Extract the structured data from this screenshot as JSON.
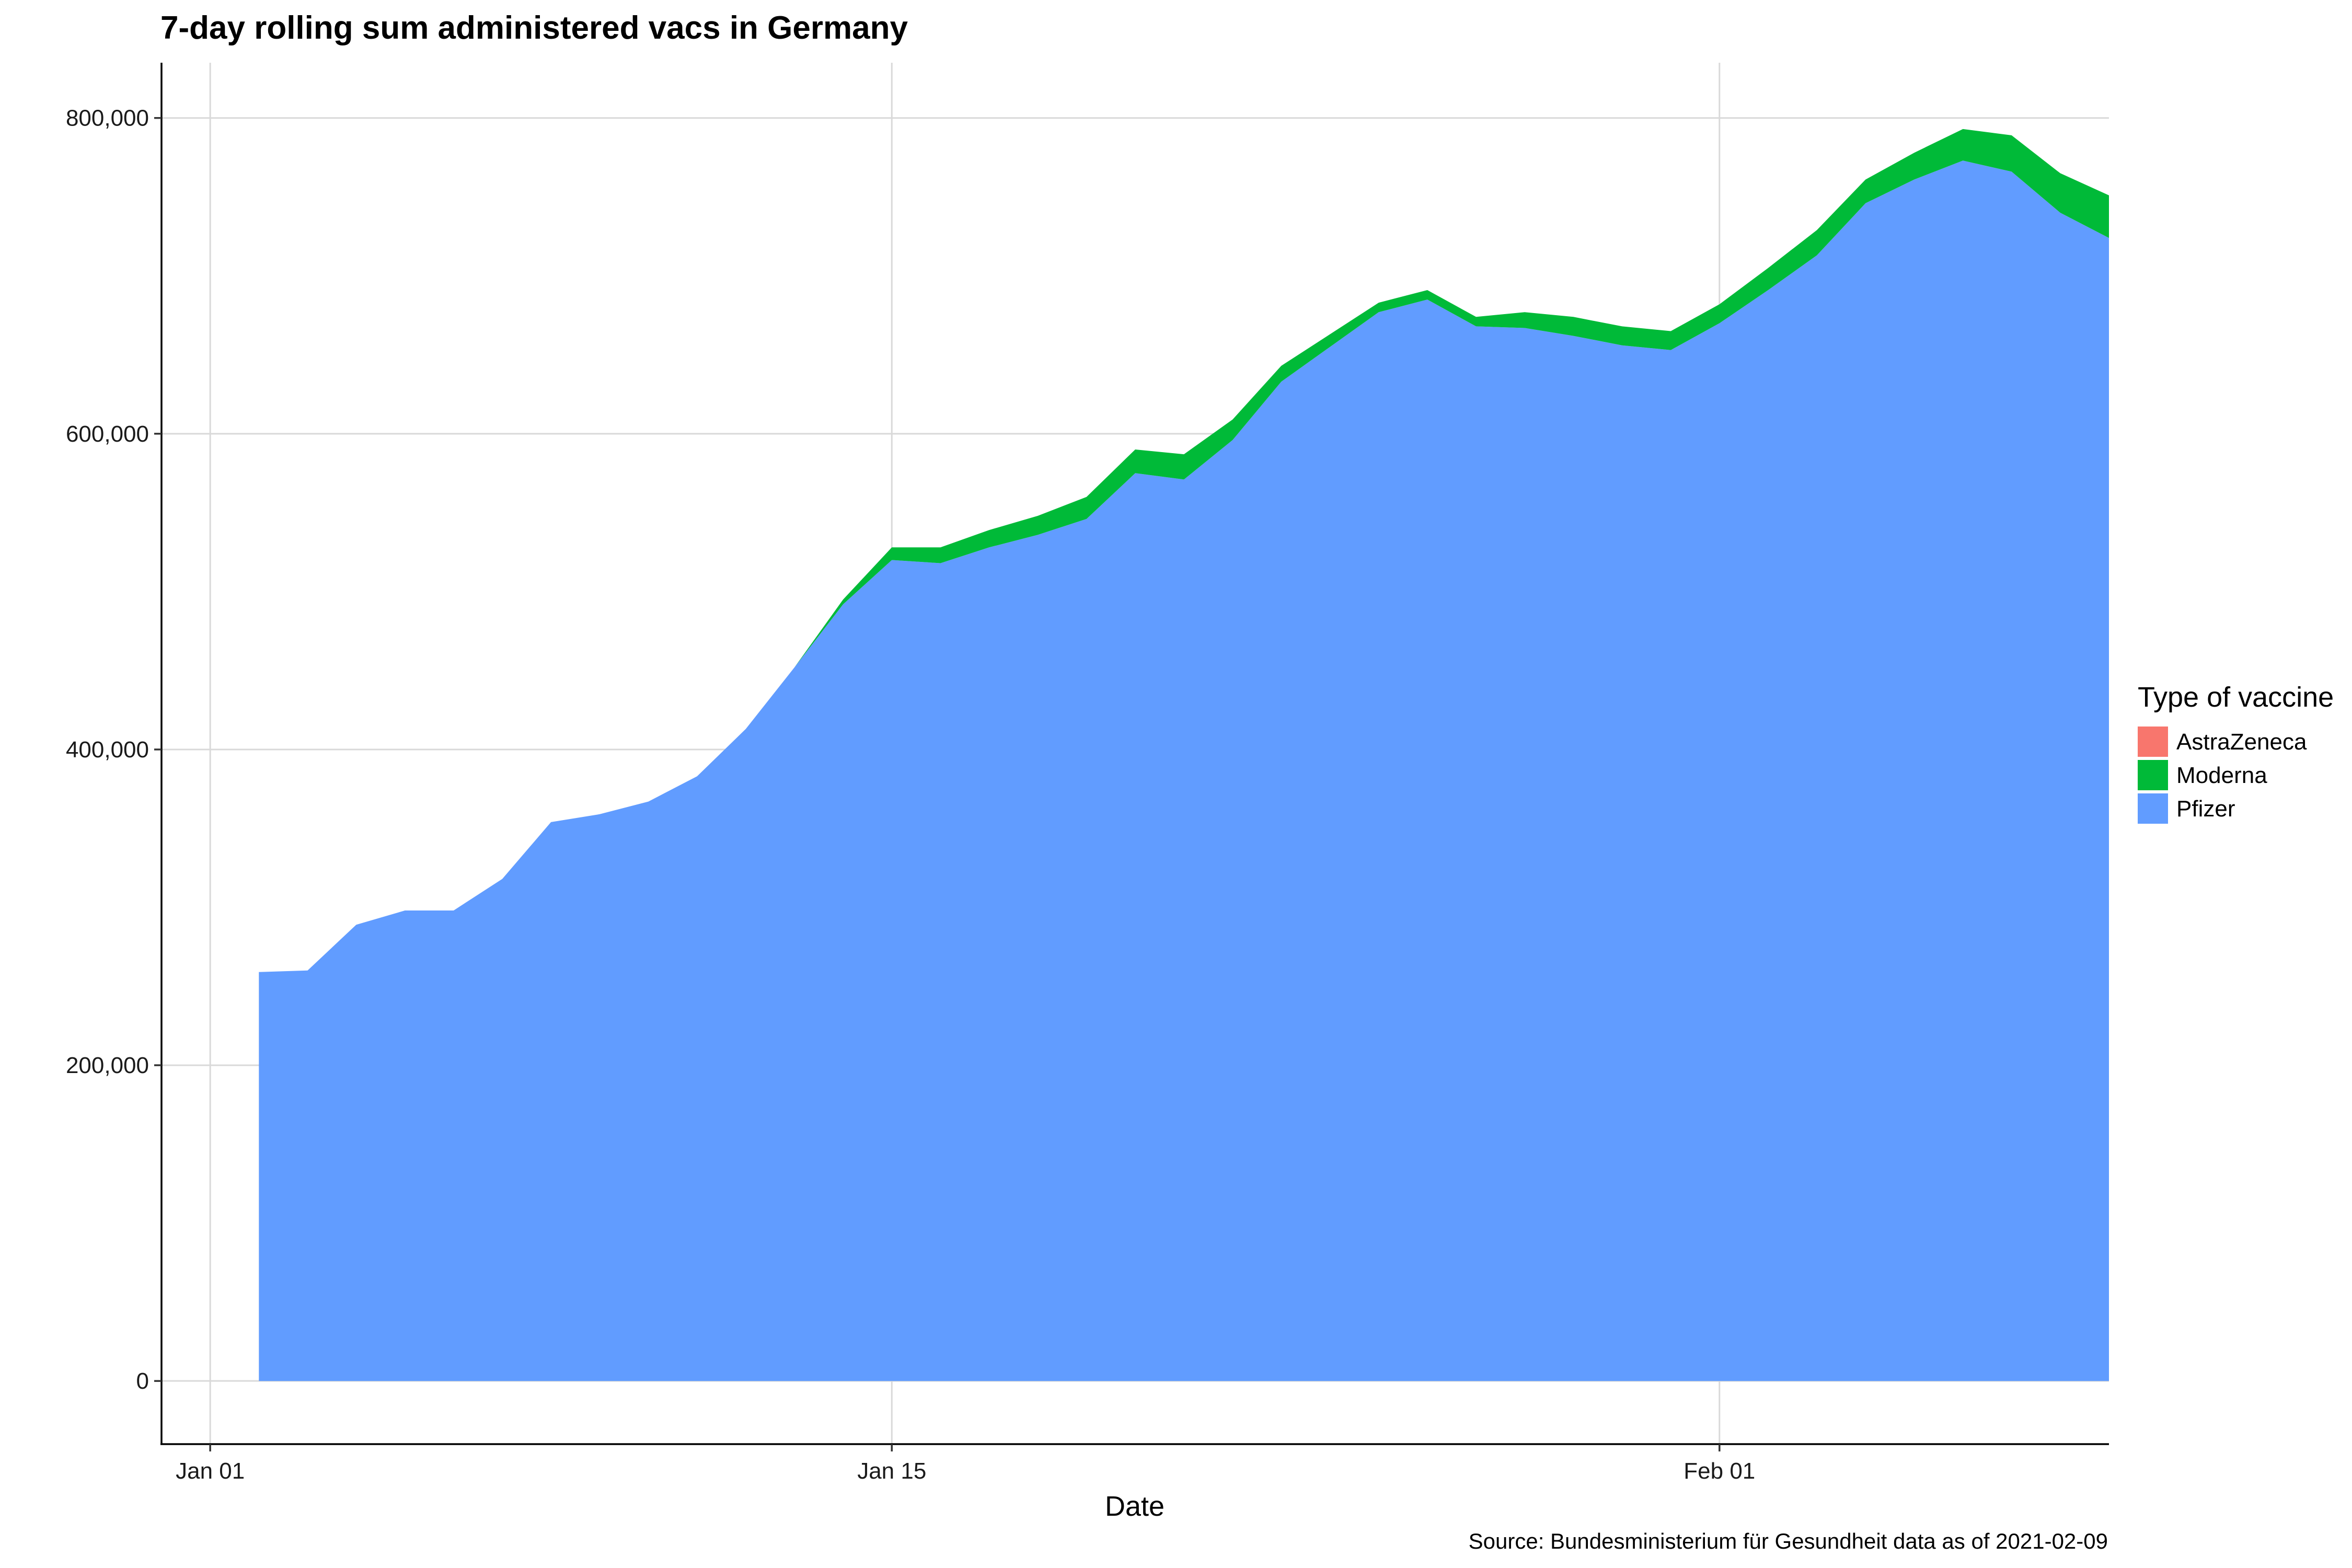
{
  "chart_data": {
    "type": "area",
    "stacked": true,
    "title": "7-day rolling sum administered vacs in Germany",
    "xlabel": "Date",
    "ylabel": "",
    "caption": "Source: Bundesministerium für Gesundheit data as of 2021-02-09",
    "x_ticks": [
      {
        "date": "2021-01-01",
        "label": "Jan 01"
      },
      {
        "date": "2021-01-15",
        "label": "Jan 15"
      },
      {
        "date": "2021-02-01",
        "label": "Feb 01"
      }
    ],
    "y_ticks": [
      {
        "value": 0,
        "label": "0"
      },
      {
        "value": 200000,
        "label": "200,000"
      },
      {
        "value": 400000,
        "label": "400,000"
      },
      {
        "value": 600000,
        "label": "600,000"
      },
      {
        "value": 800000,
        "label": "800,000"
      }
    ],
    "xlim": [
      "2020-12-31",
      "2021-02-09"
    ],
    "ylim": [
      -40000,
      835000
    ],
    "grid": true,
    "legend": {
      "title": "Type of vaccine",
      "position": "right"
    },
    "x": [
      "2021-01-02",
      "2021-01-03",
      "2021-01-04",
      "2021-01-05",
      "2021-01-06",
      "2021-01-07",
      "2021-01-08",
      "2021-01-09",
      "2021-01-10",
      "2021-01-11",
      "2021-01-12",
      "2021-01-13",
      "2021-01-14",
      "2021-01-15",
      "2021-01-16",
      "2021-01-17",
      "2021-01-18",
      "2021-01-19",
      "2021-01-20",
      "2021-01-21",
      "2021-01-22",
      "2021-01-23",
      "2021-01-24",
      "2021-01-25",
      "2021-01-26",
      "2021-01-27",
      "2021-01-28",
      "2021-01-29",
      "2021-01-30",
      "2021-01-31",
      "2021-02-01",
      "2021-02-02",
      "2021-02-03",
      "2021-02-04",
      "2021-02-05",
      "2021-02-06",
      "2021-02-07",
      "2021-02-08",
      "2021-02-09"
    ],
    "series": [
      {
        "name": "AstraZeneca",
        "color": "#F8766D",
        "values": [
          0,
          0,
          0,
          0,
          0,
          0,
          0,
          0,
          0,
          0,
          0,
          0,
          0,
          0,
          0,
          0,
          0,
          0,
          0,
          0,
          0,
          0,
          0,
          0,
          0,
          0,
          0,
          0,
          0,
          0,
          0,
          0,
          0,
          0,
          0,
          0,
          0,
          0,
          0
        ]
      },
      {
        "name": "Moderna",
        "color": "#00BA38",
        "values": [
          0,
          0,
          0,
          0,
          0,
          0,
          0,
          0,
          0,
          0,
          0,
          0,
          3000,
          8000,
          10000,
          11000,
          12000,
          14000,
          15000,
          16000,
          13000,
          10000,
          8000,
          6000,
          6000,
          6000,
          10000,
          12000,
          12000,
          12000,
          12000,
          14000,
          16000,
          15000,
          17000,
          20000,
          23000,
          25000,
          27000
        ]
      },
      {
        "name": "Pfizer",
        "color": "#619CFF",
        "values": [
          259000,
          260000,
          289000,
          298000,
          298000,
          318000,
          354000,
          359000,
          367000,
          383000,
          413000,
          452000,
          492000,
          520000,
          518000,
          528000,
          536000,
          546000,
          575000,
          571000,
          596000,
          633000,
          655000,
          677000,
          685000,
          668000,
          667000,
          662000,
          656000,
          653000,
          670000,
          691000,
          713000,
          746000,
          761000,
          773000,
          766000,
          740000,
          724000
        ]
      }
    ]
  }
}
